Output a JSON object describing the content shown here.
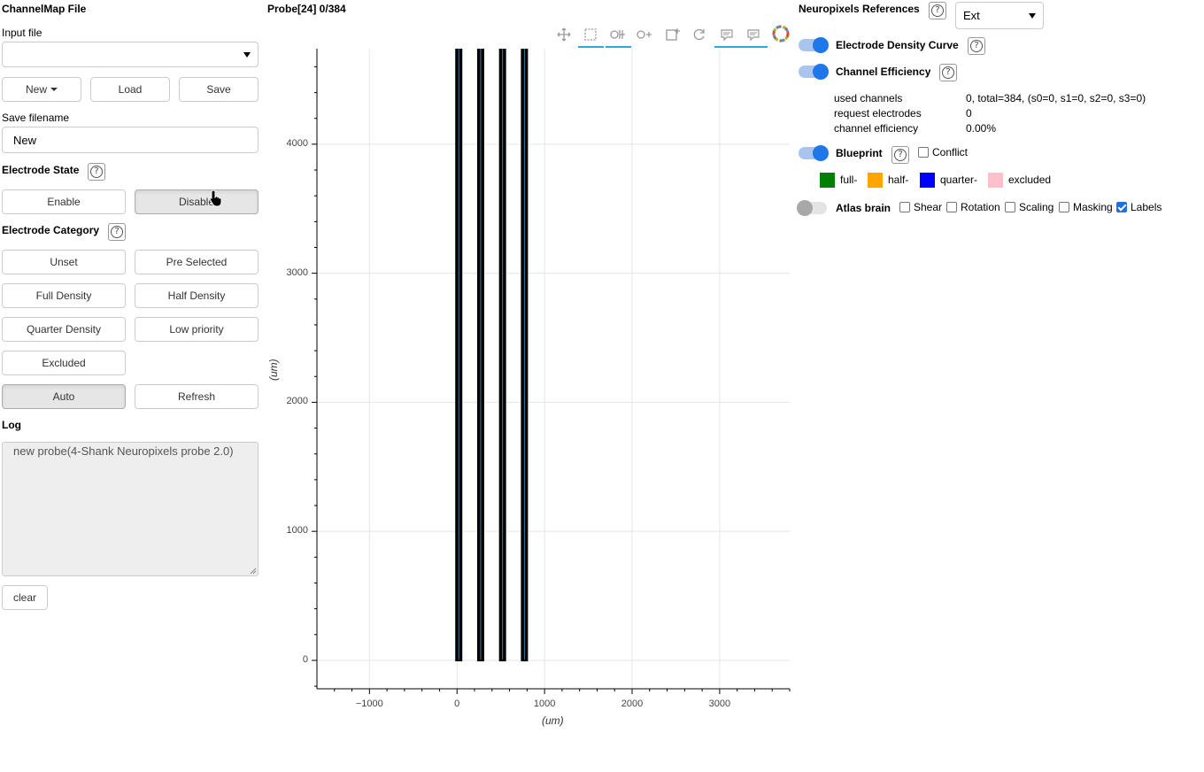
{
  "left": {
    "title": "ChannelMap File",
    "input_file_label": "Input file",
    "input_file_value": "",
    "btn_new": "New",
    "btn_load": "Load",
    "btn_save": "Save",
    "save_filename_label": "Save filename",
    "save_filename_value": "New",
    "electrode_state_label": "Electrode State",
    "btn_enable": "Enable",
    "btn_disable": "Disable",
    "electrode_category_label": "Electrode Category",
    "btn_unset": "Unset",
    "btn_pre_selected": "Pre Selected",
    "btn_full_density": "Full Density",
    "btn_half_density": "Half Density",
    "btn_quarter_density": "Quarter Density",
    "btn_low_priority": "Low priority",
    "btn_excluded": "Excluded",
    "btn_auto": "Auto",
    "btn_refresh": "Refresh",
    "log_label": "Log",
    "log_text": "new probe(4-Shank Neuropixels probe 2.0)",
    "btn_clear": "clear"
  },
  "plot": {
    "title": "Probe[24] 0/384",
    "x_label": "(um)",
    "y_label": "(um)",
    "x_ticks": [
      "−1000",
      "0",
      "1000",
      "2000",
      "3000"
    ],
    "y_ticks": [
      "0",
      "1000",
      "2000",
      "3000",
      "4000"
    ],
    "x_tick_values": [
      -1000,
      0,
      1000,
      2000,
      3000
    ],
    "y_tick_values": [
      0,
      1000,
      2000,
      3000,
      4000
    ],
    "x_range": [
      -1600,
      3800
    ],
    "y_range": [
      -220,
      4740
    ],
    "shanks_x": [
      0,
      250,
      500,
      750
    ],
    "shank_y_range": [
      0,
      4740
    ],
    "toolbar": [
      "pan-icon",
      "box-select-icon",
      "wheel-zoom-x-icon",
      "wheel-zoom-y-icon",
      "box-edit-icon",
      "reset-icon",
      "hover-icon",
      "hover-icon-2",
      "bokeh-logo-icon"
    ]
  },
  "right": {
    "neuropixels_references_label": "Neuropixels References",
    "reference_value": "Ext",
    "electrode_density_curve_label": "Electrode Density Curve",
    "channel_efficiency_label": "Channel Efficiency",
    "stats": [
      {
        "key": "used channels",
        "value": "0, total=384, (s0=0, s1=0, s2=0, s3=0)"
      },
      {
        "key": "request electrodes",
        "value": "0"
      },
      {
        "key": "channel efficiency",
        "value": "0.00%"
      }
    ],
    "blueprint_label": "Blueprint",
    "conflict_label": "Conflict",
    "legend": [
      {
        "label": "full-",
        "color": "#008000"
      },
      {
        "label": "half-",
        "color": "#ffa500"
      },
      {
        "label": "quarter-",
        "color": "#0000ff"
      },
      {
        "label": "excluded",
        "color": "#ffc0cb"
      }
    ],
    "atlas_brain_label": "Atlas brain",
    "atlas_options": [
      {
        "label": "Shear",
        "checked": false
      },
      {
        "label": "Rotation",
        "checked": false
      },
      {
        "label": "Scaling",
        "checked": false
      },
      {
        "label": "Masking",
        "checked": false
      },
      {
        "label": "Labels",
        "checked": true
      }
    ]
  },
  "colors": {
    "accent": "#1f77e8",
    "toolbar_active": "#26aae1"
  }
}
